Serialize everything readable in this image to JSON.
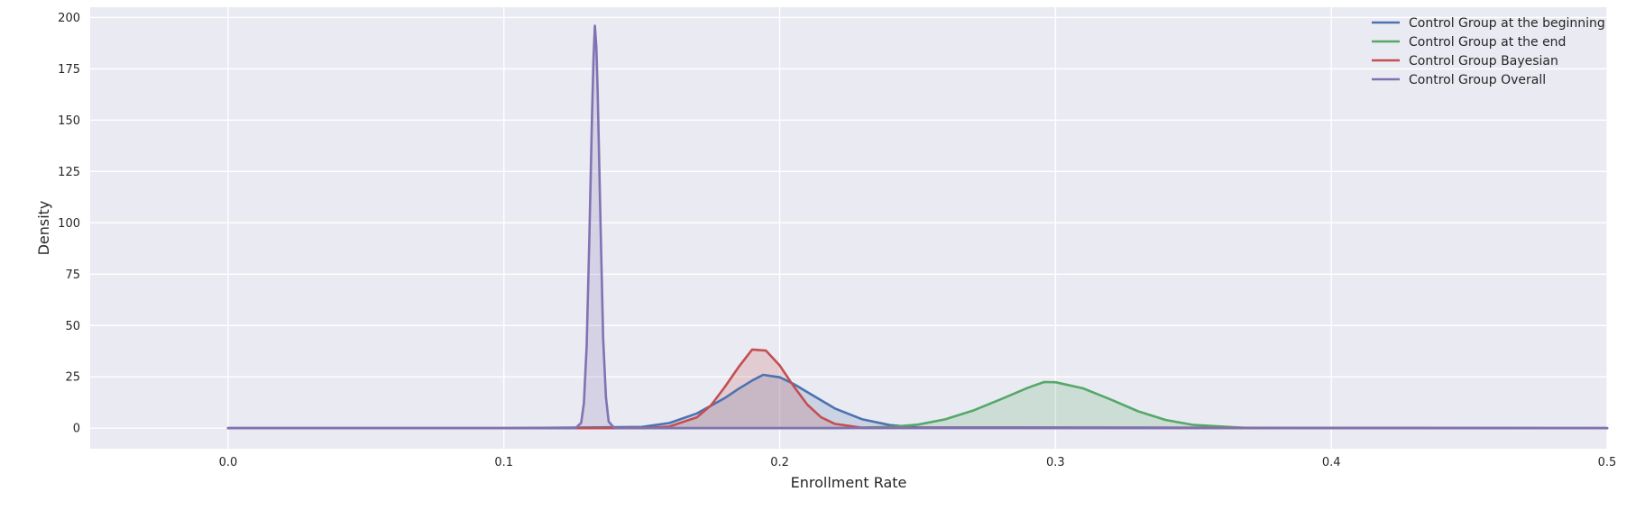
{
  "chart_data": {
    "type": "line",
    "xlabel": "Enrollment Rate",
    "ylabel": "Density",
    "xlim": [
      -0.05,
      0.5
    ],
    "ylim": [
      -10,
      205
    ],
    "xticks": [
      "0.0",
      "0.1",
      "0.2",
      "0.3",
      "0.4",
      "0.5"
    ],
    "yticks": [
      "0",
      "25",
      "50",
      "75",
      "100",
      "125",
      "150",
      "175",
      "200"
    ],
    "grid": true,
    "legend_position": "top-right",
    "colors": {
      "plot_background": "#eaeaf2",
      "grid": "#ffffff"
    },
    "series": [
      {
        "name": "Control Group at the beginning",
        "color": "#4c72b0",
        "fill": true,
        "x": [
          0.0,
          0.1,
          0.15,
          0.16,
          0.17,
          0.18,
          0.185,
          0.19,
          0.194,
          0.2,
          0.205,
          0.21,
          0.22,
          0.23,
          0.24,
          0.25,
          0.5
        ],
        "y": [
          0,
          0,
          0.6,
          2.5,
          7.2,
          14.6,
          19.1,
          23.2,
          26.0,
          24.8,
          21.6,
          17.6,
          9.6,
          4.3,
          1.5,
          0.4,
          0
        ]
      },
      {
        "name": "Control Group at the end",
        "color": "#55a868",
        "fill": true,
        "x": [
          0.0,
          0.22,
          0.24,
          0.25,
          0.26,
          0.27,
          0.28,
          0.29,
          0.296,
          0.3,
          0.31,
          0.32,
          0.33,
          0.34,
          0.35,
          0.37,
          0.5
        ],
        "y": [
          0,
          0,
          0.6,
          1.7,
          4.3,
          8.5,
          14.0,
          19.7,
          22.5,
          22.4,
          19.4,
          14.0,
          8.2,
          4.0,
          1.6,
          0.1,
          0
        ]
      },
      {
        "name": "Control Group Bayesian",
        "color": "#c44e52",
        "fill": true,
        "x": [
          0.0,
          0.15,
          0.16,
          0.17,
          0.175,
          0.18,
          0.185,
          0.19,
          0.195,
          0.2,
          0.205,
          0.21,
          0.215,
          0.22,
          0.23,
          0.5
        ],
        "y": [
          0,
          0,
          0.8,
          5.3,
          11.0,
          19.9,
          29.6,
          38.3,
          37.8,
          30.6,
          20.6,
          11.5,
          5.3,
          2.1,
          0.2,
          0
        ]
      },
      {
        "name": "Control Group Overall",
        "color": "#8172b2",
        "fill": true,
        "x": [
          0.0,
          0.126,
          0.128,
          0.129,
          0.13,
          0.131,
          0.132,
          0.1325,
          0.133,
          0.1335,
          0.134,
          0.135,
          0.136,
          0.137,
          0.138,
          0.14,
          0.5
        ],
        "y": [
          0,
          0,
          2.6,
          12.0,
          40.0,
          93.0,
          155.0,
          180.0,
          196.0,
          186.0,
          164.0,
          101.0,
          43.5,
          15.0,
          3.2,
          0.1,
          0
        ]
      }
    ]
  }
}
